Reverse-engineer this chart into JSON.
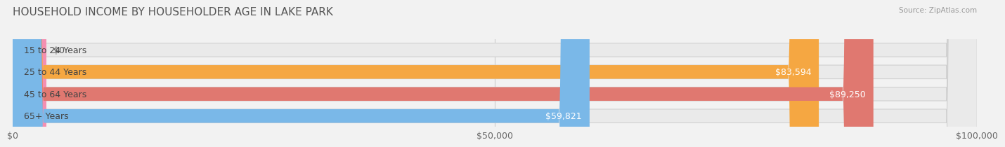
{
  "title": "HOUSEHOLD INCOME BY HOUSEHOLDER AGE IN LAKE PARK",
  "source": "Source: ZipAtlas.com",
  "categories": [
    "15 to 24 Years",
    "25 to 44 Years",
    "45 to 64 Years",
    "65+ Years"
  ],
  "values": [
    0,
    83594,
    89250,
    59821
  ],
  "bar_colors": [
    "#f48fb1",
    "#f5a742",
    "#e07870",
    "#7ab8e8"
  ],
  "background_color": "#f0f0f0",
  "bar_bg_color": "#e8e8e8",
  "xlim": [
    0,
    100000
  ],
  "xticks": [
    0,
    50000,
    100000
  ],
  "xtick_labels": [
    "$0",
    "$50,000",
    "$100,000"
  ],
  "label_fontsize": 9,
  "title_fontsize": 11,
  "value_labels": [
    "$0",
    "$83,594",
    "$89,250",
    "$59,821"
  ],
  "bar_height": 0.62
}
